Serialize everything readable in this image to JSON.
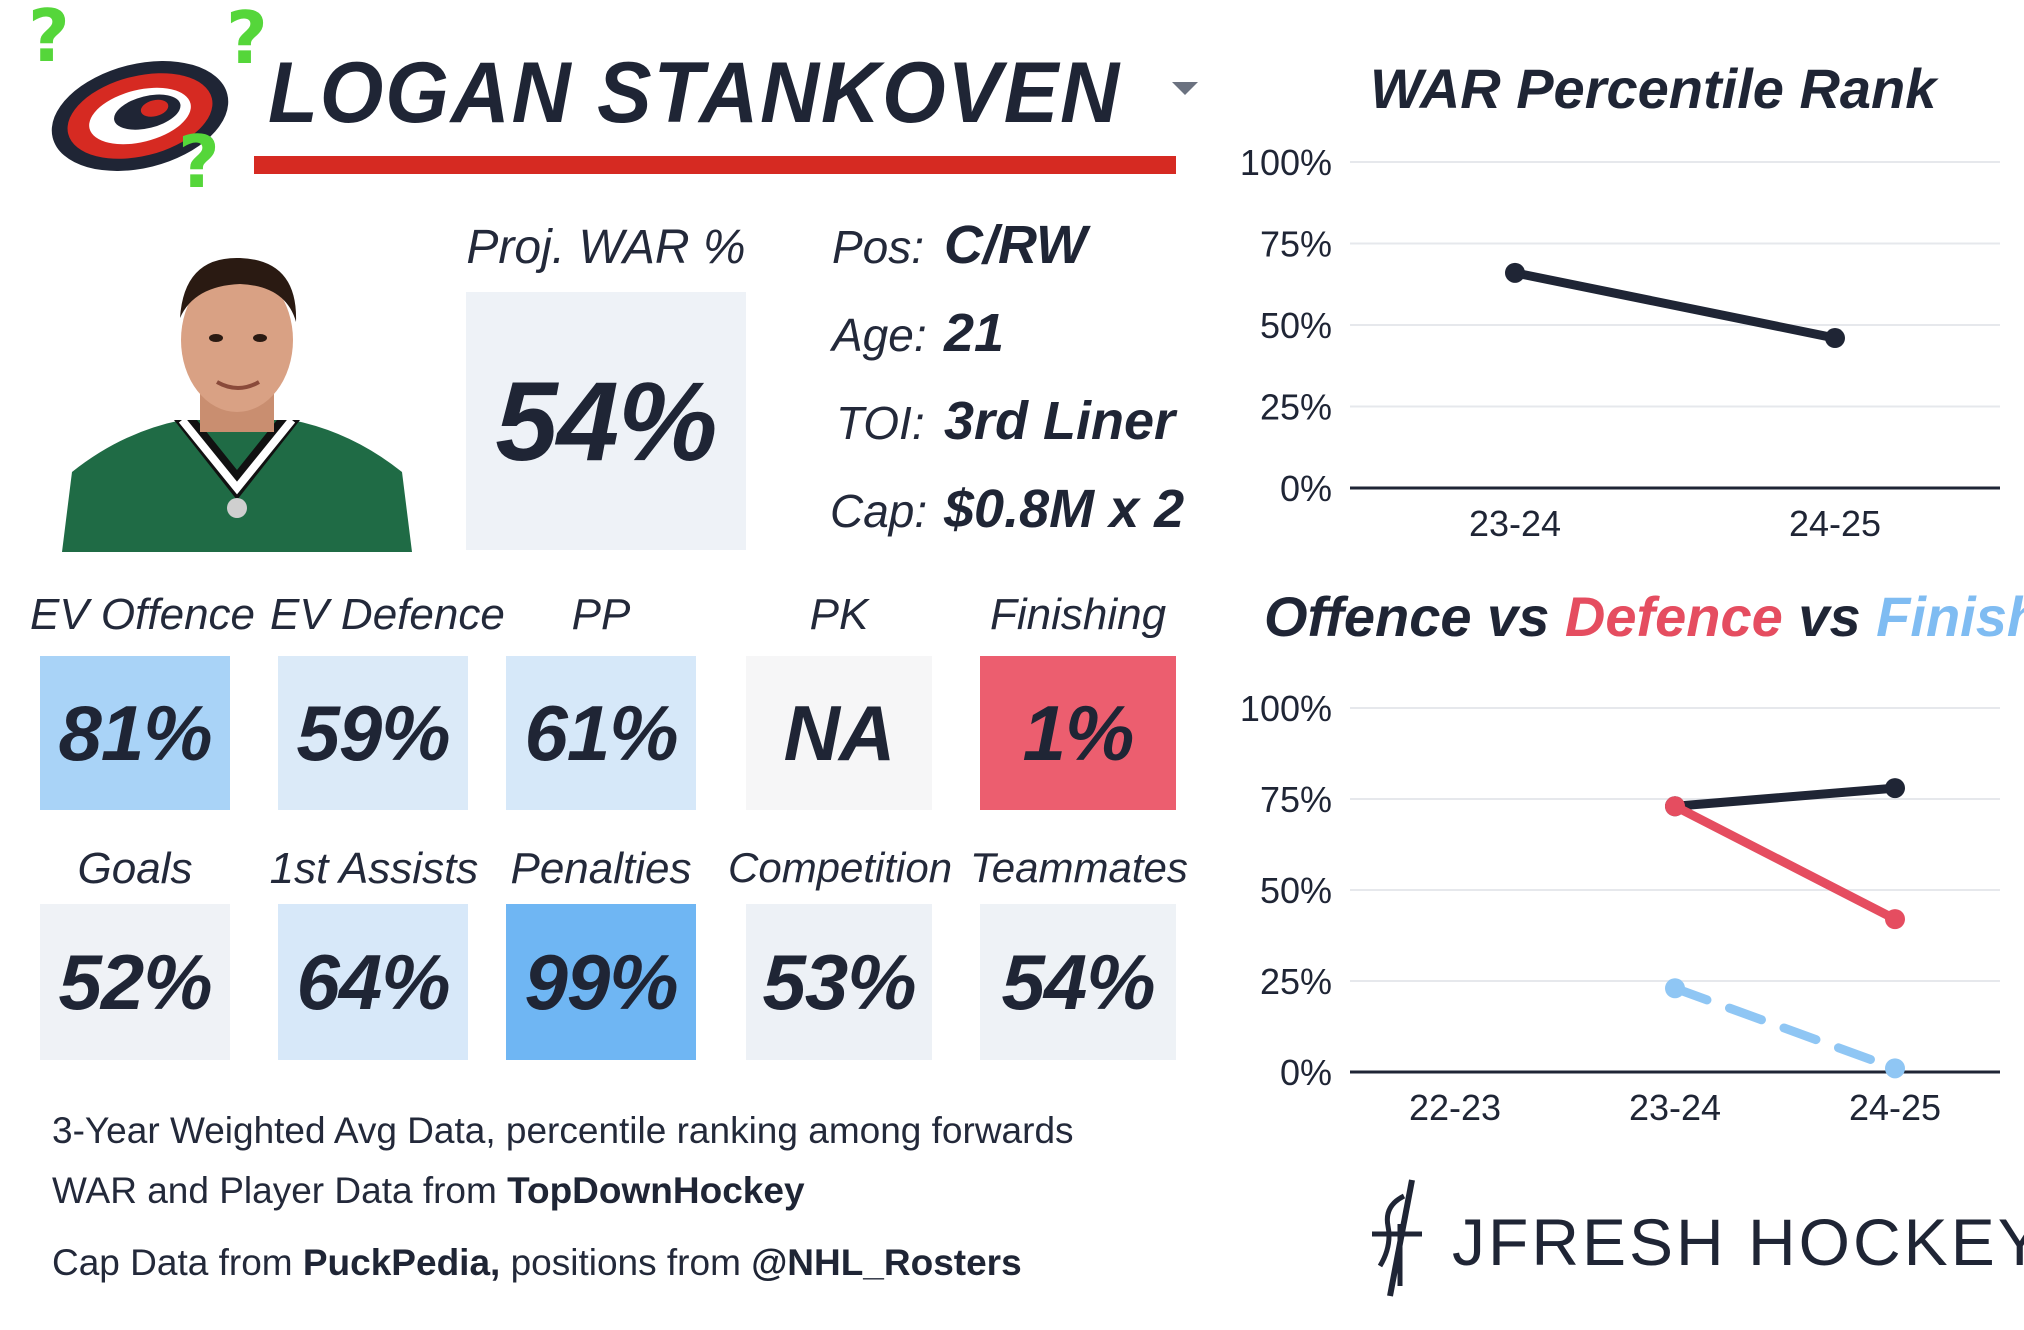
{
  "player": {
    "name": "LOGAN STANKOVEN",
    "proj_war_label": "Proj. WAR %",
    "proj_war_value": "54%"
  },
  "logo": {
    "icon": "hurricanes-logo",
    "overlay": "?"
  },
  "info": [
    {
      "label": "Pos:",
      "value": "C/RW"
    },
    {
      "label": "Age:",
      "value": "21"
    },
    {
      "label": "TOI:",
      "value": "3rd Liner"
    },
    {
      "label": "Cap:",
      "value": "$0.8M x 2"
    }
  ],
  "tiles_row1": [
    {
      "label": "EV Offence",
      "value": "81%",
      "color": "#a9d3f7"
    },
    {
      "label": "EV Defence",
      "value": "59%",
      "color": "#dbeaf8"
    },
    {
      "label": "PP",
      "value": "61%",
      "color": "#d6e8f9"
    },
    {
      "label": "PK",
      "value": "NA",
      "color": "#f6f6f7"
    },
    {
      "label": "Finishing",
      "value": "1%",
      "color": "#ec5e6f"
    }
  ],
  "tiles_row2": [
    {
      "label": "Goals",
      "value": "52%",
      "color": "#eff2f6"
    },
    {
      "label": "1st Assists",
      "value": "64%",
      "color": "#d7e8f9"
    },
    {
      "label": "Penalties",
      "value": "99%",
      "color": "#6fb6f3"
    },
    {
      "label": "Competition",
      "value": "53%",
      "color": "#edf1f6"
    },
    {
      "label": "Teammates",
      "value": "54%",
      "color": "#eef2f6"
    }
  ],
  "footnotes": {
    "line1": "3-Year Weighted Avg Data, percentile ranking among forwards",
    "line2_pre": "WAR and Player Data from ",
    "line2_bold": "TopDownHockey",
    "line3_pre": "Cap Data from ",
    "line3_bold1": "PuckPedia,",
    "line3_mid": " positions from ",
    "line3_bold2": "@NHL_Rosters"
  },
  "brand": {
    "name": "JFRESH HOCKEY",
    "icon": "jfresh-logo"
  },
  "colors": {
    "navy": "#1f2535",
    "red": "#e54d60",
    "blue": "#7fbcf2",
    "accent_red": "#d62a22"
  },
  "chart_data": [
    {
      "type": "line",
      "title": "WAR Percentile Rank",
      "categories": [
        "23-24",
        "24-25"
      ],
      "series": [
        {
          "values": [
            66,
            46
          ],
          "color": "#1f2535",
          "style": "solid"
        }
      ],
      "yticks": [
        "0%",
        "25%",
        "50%",
        "75%",
        "100%"
      ],
      "ylim": [
        0,
        100
      ],
      "grid": true
    },
    {
      "type": "line",
      "title_parts": [
        {
          "text": "Offence",
          "color": "#1f2535"
        },
        {
          "text": " vs ",
          "color": "#1f2535"
        },
        {
          "text": "Defence",
          "color": "#e54d60"
        },
        {
          "text": " vs ",
          "color": "#1f2535"
        },
        {
          "text": "Finishing",
          "color": "#7fbcf2"
        }
      ],
      "categories": [
        "22-23",
        "23-24",
        "24-25"
      ],
      "series": [
        {
          "values": [
            null,
            73,
            78
          ],
          "color": "#1f2535",
          "style": "solid"
        },
        {
          "values": [
            null,
            73,
            42
          ],
          "color": "#e54d60",
          "style": "solid"
        },
        {
          "values": [
            null,
            23,
            1
          ],
          "color": "#8fc6f4",
          "style": "dashed"
        }
      ],
      "yticks": [
        "0%",
        "25%",
        "50%",
        "75%",
        "100%"
      ],
      "ylim": [
        0,
        100
      ],
      "grid": true
    }
  ]
}
